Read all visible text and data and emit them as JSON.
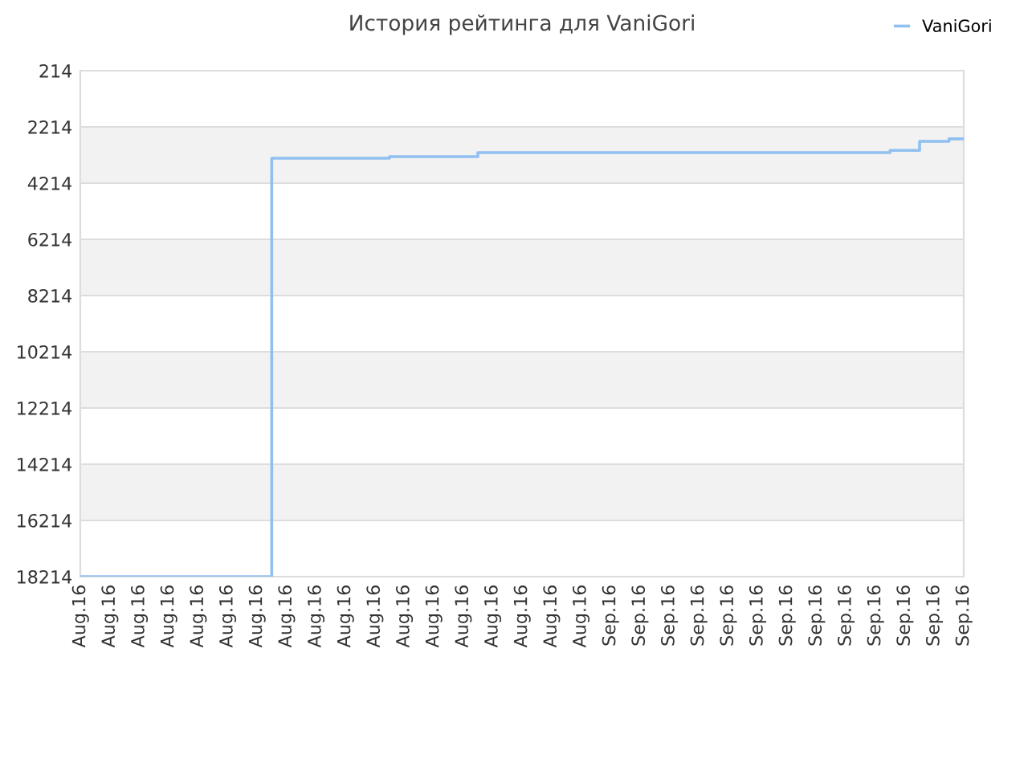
{
  "chart_data": {
    "type": "step",
    "title": "История рейтинга для VaniGori",
    "categories": [
      "Aug.16",
      "Aug.16",
      "Aug.16",
      "Aug.16",
      "Aug.16",
      "Aug.16",
      "Aug.16",
      "Aug.16",
      "Aug.16",
      "Aug.16",
      "Aug.16",
      "Aug.16",
      "Aug.16",
      "Aug.16",
      "Aug.16",
      "Aug.16",
      "Aug.16",
      "Aug.16",
      "Sep.16",
      "Sep.16",
      "Sep.16",
      "Sep.16",
      "Sep.16",
      "Sep.16",
      "Sep.16",
      "Sep.16",
      "Sep.16",
      "Sep.16",
      "Sep.16",
      "Sep.16",
      "Sep.16"
    ],
    "series": [
      {
        "name": "VaniGori",
        "color": "#90c0f0",
        "values": [
          18214,
          18214,
          18214,
          18214,
          18214,
          18214,
          18214,
          3330,
          3330,
          3330,
          3330,
          3270,
          3270,
          3270,
          3130,
          3130,
          3130,
          3130,
          3130,
          3130,
          3130,
          3130,
          3130,
          3130,
          3130,
          3130,
          3130,
          3130,
          3050,
          2730,
          2640
        ]
      }
    ],
    "ylim": [
      18214,
      214
    ],
    "yticks": [
      214,
      2214,
      4214,
      6214,
      8214,
      10214,
      12214,
      14214,
      16214,
      18214
    ],
    "grid": "y",
    "legend": "top right",
    "marker": "none",
    "line_style": "solid"
  }
}
